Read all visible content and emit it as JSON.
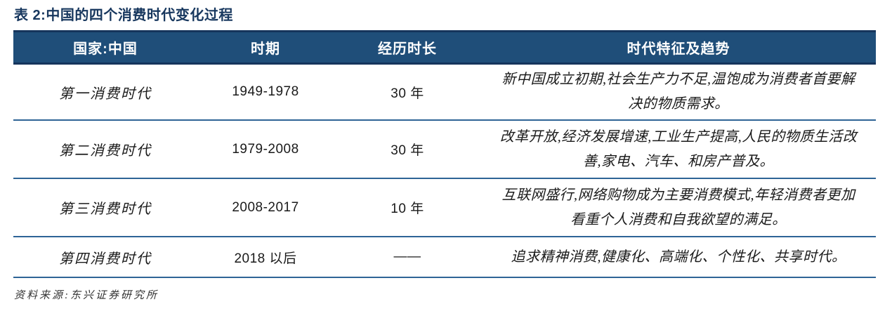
{
  "title": "表 2:中国的四个消费时代变化过程",
  "table": {
    "headers": {
      "country": "国家:中国",
      "period": "时期",
      "duration": "经历时长",
      "features": "时代特征及趋势"
    },
    "rows": [
      {
        "era": "第一消费时代",
        "period": "1949-1978",
        "duration": "30 年",
        "desc": "新中国成立初期,社会生产力不足,温饱成为消费者首要解决的物质需求。"
      },
      {
        "era": "第二消费时代",
        "period": "1979-2008",
        "duration": "30 年",
        "desc": "改革开放,经济发展增速,工业生产提高,人民的物质生活改善,家电、汽车、和房产普及。"
      },
      {
        "era": "第三消费时代",
        "period": "2008-2017",
        "duration": "10 年",
        "desc": "互联网盛行,网络购物成为主要消费模式,年轻消费者更加看重个人消费和自我欲望的满足。"
      },
      {
        "era": "第四消费时代",
        "period": "2018 以后",
        "duration": "——",
        "desc": "追求精神消费,健康化、高端化、个性化、共享时代。"
      }
    ]
  },
  "source": "资料来源:东兴证券研究所",
  "colors": {
    "title_text": "#17375E",
    "header_bg": "#1F4E79",
    "header_border": "#16355C",
    "header_text": "#FFFFFF",
    "row_divider": "#2E6496",
    "body_text": "#1A1A1A",
    "source_text": "#333333"
  }
}
